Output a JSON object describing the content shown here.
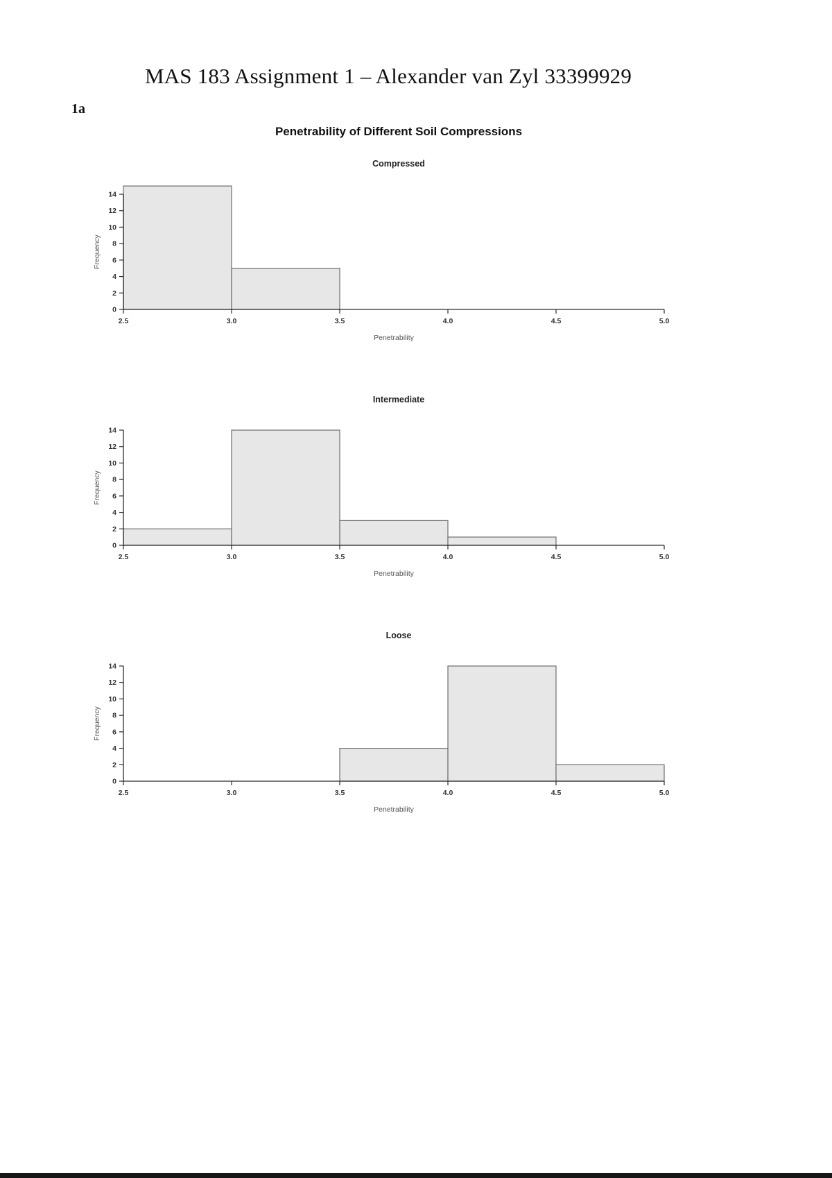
{
  "page": {
    "title": "MAS 183 Assignment 1 – Alexander van Zyl 33399929",
    "section_label": "1a",
    "figure_title": "Penetrability of Different Soil Compressions"
  },
  "figure_style": {
    "bar_fill": "#e7e7e7",
    "bar_stroke": "#6e6e6e",
    "axis_color": "#2b2b2b",
    "tick_label_color": "#333333",
    "axis_label_color": "#555555"
  },
  "chart_data": [
    {
      "type": "bar",
      "title": "Compressed",
      "xlabel": "Penetrability",
      "ylabel": "Frequency",
      "xlim": [
        2.5,
        5.0
      ],
      "ylim": [
        0,
        14
      ],
      "x_tick_labels": [
        "2.5",
        "3.0",
        "3.5",
        "4.0",
        "4.5",
        "5.0"
      ],
      "x_tick_values": [
        2.5,
        3.0,
        3.5,
        4.0,
        4.5,
        5.0
      ],
      "y_ticks": [
        0,
        2,
        4,
        6,
        8,
        10,
        12,
        14
      ],
      "bins": {
        "start": 2.5,
        "width": 0.5,
        "counts": [
          15,
          5,
          0,
          0,
          0
        ]
      }
    },
    {
      "type": "bar",
      "title": "Intermediate",
      "xlabel": "Penetrability",
      "ylabel": "Frequency",
      "xlim": [
        2.5,
        5.0
      ],
      "ylim": [
        0,
        14
      ],
      "x_tick_labels": [
        "2.5",
        "3.0",
        "3.5",
        "4.0",
        "4.5",
        "5.0"
      ],
      "x_tick_values": [
        2.5,
        3.0,
        3.5,
        4.0,
        4.5,
        5.0
      ],
      "y_ticks": [
        0,
        2,
        4,
        6,
        8,
        10,
        12,
        14
      ],
      "bins": {
        "start": 2.5,
        "width": 0.5,
        "counts": [
          2,
          14,
          3,
          1,
          0
        ]
      }
    },
    {
      "type": "bar",
      "title": "Loose",
      "xlabel": "Penetrability",
      "ylabel": "Frequency",
      "xlim": [
        2.5,
        5.0
      ],
      "ylim": [
        0,
        14
      ],
      "x_tick_labels": [
        "2.5",
        "3.0",
        "3.5",
        "4.0",
        "4.5",
        "5.0"
      ],
      "x_tick_values": [
        2.5,
        3.0,
        3.5,
        4.0,
        4.5,
        5.0
      ],
      "y_ticks": [
        0,
        2,
        4,
        6,
        8,
        10,
        12,
        14
      ],
      "bins": {
        "start": 2.5,
        "width": 0.5,
        "counts": [
          0,
          0,
          4,
          14,
          2
        ]
      }
    }
  ]
}
